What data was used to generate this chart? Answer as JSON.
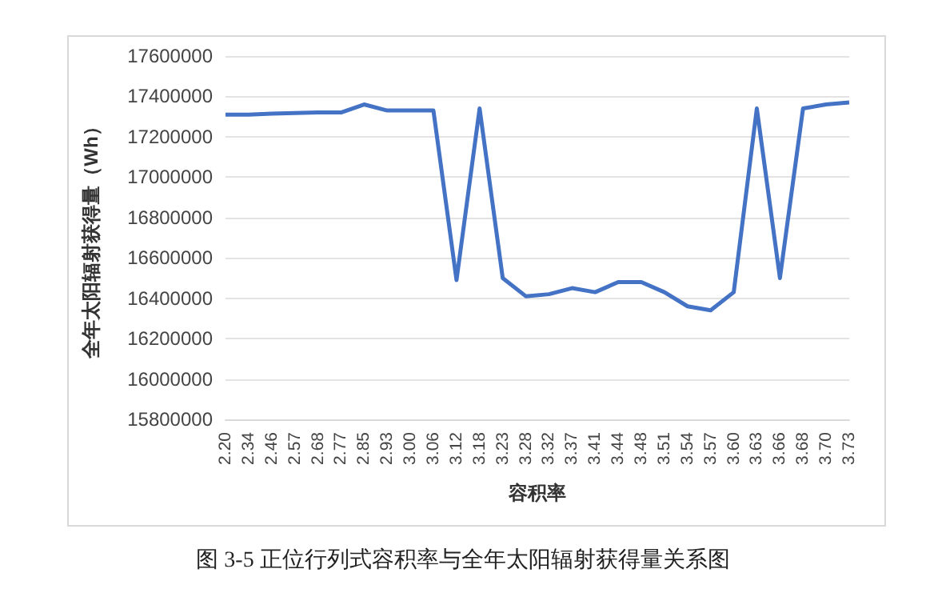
{
  "chart_data": {
    "type": "line",
    "xlabel": "容积率",
    "ylabel": "全年太阳辐射获得量（Wh）",
    "annotations": [
      "图 3-5  正位行列式容积率与全年太阳辐射获得量关系图"
    ],
    "categories": [
      "2.20",
      "2.34",
      "2.46",
      "2.57",
      "2.68",
      "2.77",
      "2.85",
      "2.93",
      "3.00",
      "3.06",
      "3.12",
      "3.18",
      "3.23",
      "3.28",
      "3.32",
      "3.37",
      "3.41",
      "3.44",
      "3.48",
      "3.51",
      "3.54",
      "3.57",
      "3.60",
      "3.63",
      "3.66",
      "3.68",
      "3.70",
      "3.73"
    ],
    "series": [
      {
        "color": "#4472c4",
        "values": [
          17310000,
          17310000,
          17315000,
          17318000,
          17320000,
          17320000,
          17360000,
          17330000,
          17330000,
          17330000,
          16490000,
          17340000,
          16500000,
          16410000,
          16420000,
          16450000,
          16430000,
          16480000,
          16480000,
          16430000,
          16360000,
          16340000,
          16430000,
          17340000,
          16500000,
          17340000,
          17360000,
          17370000
        ]
      }
    ],
    "ylim": [
      15800000,
      17600000
    ],
    "yticks": [
      15800000,
      16000000,
      16200000,
      16400000,
      16600000,
      16800000,
      17000000,
      17200000,
      17400000,
      17600000
    ],
    "grid": "y",
    "marker": "none",
    "line_style": "solid"
  }
}
